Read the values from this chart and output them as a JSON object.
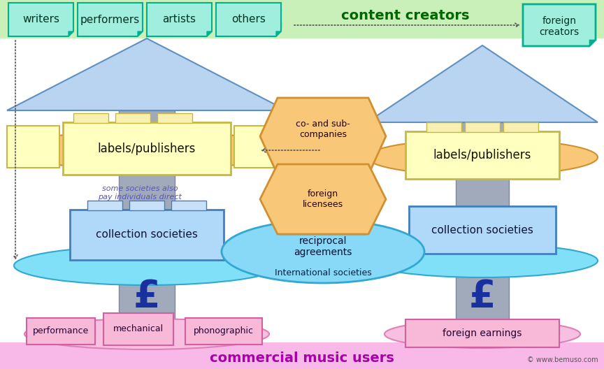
{
  "bg_color": "#ffffff",
  "top_band_color": "#c8f0b8",
  "bottom_band_color": "#f8b8e8",
  "content_creators_text": "content creators",
  "commercial_users_text": "commercial music users",
  "left_creator_boxes": [
    "writers",
    "performers",
    "artists",
    "others"
  ],
  "right_creator_box": "foreign\ncreators",
  "left_labels_publishers": "labels/publishers",
  "right_labels_publishers": "labels/publishers",
  "left_collection": "collection societies",
  "right_collection": "collection societies",
  "center_upper_text": "co- and sub-\ncompanies",
  "center_lower_text": "foreign\nlicensees",
  "center_bottom_text": "reciprocal\nagreements",
  "international_text": "International societies",
  "some_societies_text": "some societies also\npay individuals direct",
  "left_pound": "£",
  "right_pound": "£",
  "bottom_boxes": [
    "performance",
    "mechanical",
    "phonographic"
  ],
  "right_bottom_box": "foreign earnings",
  "creator_box_fill": "#a0eedd",
  "creator_box_edge": "#00b090",
  "label_box_fill": "#ffffc0",
  "label_box_edge": "#c8b840",
  "collection_box_fill": "#b0d8f8",
  "collection_box_edge": "#4080c0",
  "roof_fill": "#b8d4f0",
  "roof_edge": "#6090c0",
  "pillar_fill": "#a0aabb",
  "pillar_edge": "#808898",
  "orange_disk_fill": "#f8c878",
  "orange_disk_edge": "#d09030",
  "cyan_disk_fill": "#80e0f8",
  "cyan_disk_edge": "#30a8d0",
  "orange_diamond_fill": "#f8c878",
  "orange_diamond_edge": "#d09030",
  "cyan_drop_fill": "#88d8f8",
  "cyan_drop_edge": "#30a8d0",
  "bottom_pink_disk_fill": "#f8c0e0",
  "bottom_pink_disk_edge": "#e080b8",
  "bottom_box_fill": "#f8b8d8",
  "bottom_box_edge": "#d060a0",
  "pound_color": "#1830a0",
  "bemuso_text": "© www.bemuso.com",
  "dotted_color": "#555555",
  "tab_fill": "#f8f0b0",
  "tab_edge": "#c8b840",
  "col_tab_fill": "#c8e0f8",
  "col_tab_edge": "#4080c0"
}
